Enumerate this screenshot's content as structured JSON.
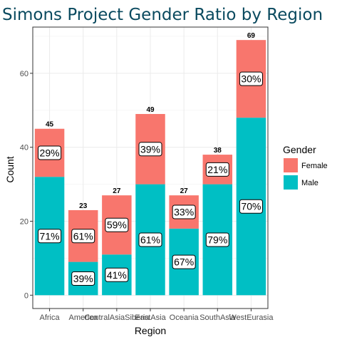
{
  "chart_data": {
    "type": "bar",
    "stacked": true,
    "title": "Simons Project Gender Ratio by Region",
    "xlabel": "Region",
    "ylabel": "Count",
    "ylim": [
      0,
      70
    ],
    "y_ticks": [
      0,
      20,
      40,
      60
    ],
    "grid": true,
    "legend_position": "right",
    "categories": [
      "Africa",
      "America",
      "CentralAsiaSiberia",
      "EastAsia",
      "Oceania",
      "SouthAsia",
      "WestEurasia"
    ],
    "totals": [
      45,
      23,
      27,
      49,
      27,
      38,
      69
    ],
    "series": [
      {
        "name": "Male",
        "color": "#00bfc4",
        "values": [
          32,
          9,
          11,
          30,
          18,
          30,
          48
        ],
        "pct_labels": [
          "71%",
          "39%",
          "41%",
          "61%",
          "67%",
          "79%",
          "70%"
        ]
      },
      {
        "name": "Female",
        "color": "#f8766d",
        "values": [
          13,
          14,
          16,
          19,
          9,
          8,
          21
        ],
        "pct_labels": [
          "29%",
          "61%",
          "59%",
          "39%",
          "33%",
          "21%",
          "30%"
        ]
      }
    ],
    "legend": {
      "title": "Gender",
      "items": [
        {
          "label": "Female",
          "color": "#f8766d"
        },
        {
          "label": "Male",
          "color": "#00bfc4"
        }
      ]
    }
  }
}
